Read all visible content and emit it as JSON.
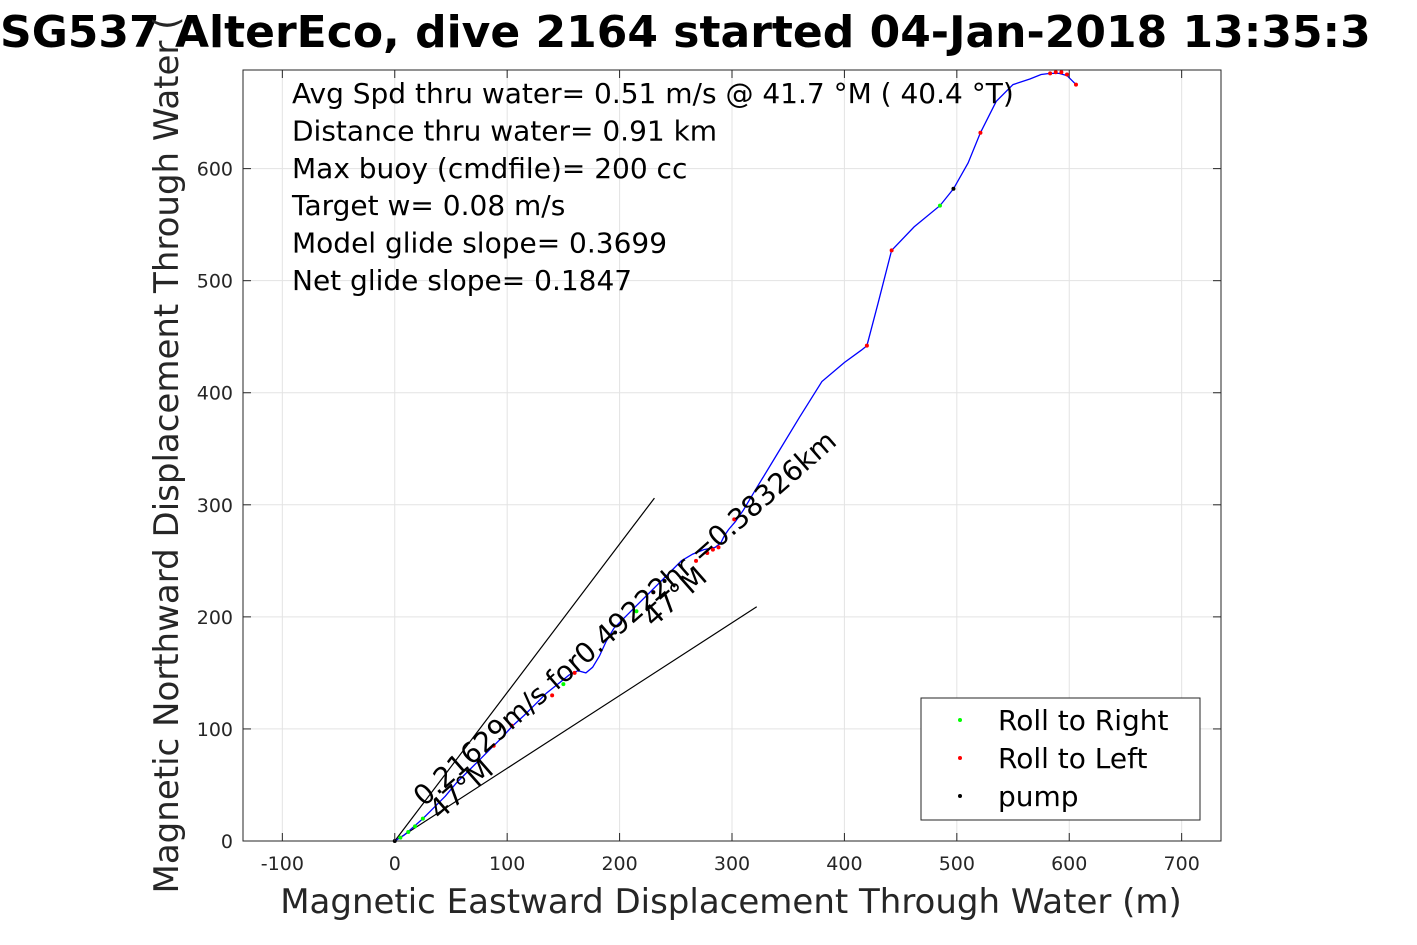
{
  "chart_data": {
    "type": "line",
    "title": "SG537 AlterEco, dive 2164 started 04-Jan-2018 13:35:3",
    "xlabel": "Magnetic Eastward Displacement Through Water (m)",
    "ylabel": "Magnetic Northward Displacement Through Water (",
    "xlim": [
      -135,
      735
    ],
    "ylim": [
      0,
      688
    ],
    "xticks": [
      -100,
      0,
      100,
      200,
      300,
      400,
      500,
      600,
      700
    ],
    "yticks": [
      0,
      100,
      200,
      300,
      400,
      500,
      600
    ],
    "xtick_labels": [
      "-100",
      "0",
      "100",
      "200",
      "300",
      "400",
      "500",
      "600",
      "700"
    ],
    "ytick_labels": [
      "0",
      "100",
      "200",
      "300",
      "400",
      "500",
      "600"
    ],
    "grid": true,
    "info_lines": [
      "Avg Spd thru water=  0.51 m/s @  41.7 °M ( 40.4 °T)",
      "Distance thru water=  0.91 km",
      "Max buoy (cmdfile)= 200 cc",
      "Target w= 0.08 m/s",
      "Model glide slope= 0.3699",
      "Net glide slope= 0.1847"
    ],
    "track": {
      "color": "#0000ff",
      "x": [
        0,
        8,
        16,
        25,
        35,
        45,
        55,
        65,
        75,
        85,
        95,
        105,
        115,
        125,
        135,
        145,
        155,
        163,
        170,
        176,
        182,
        188,
        195,
        205,
        215,
        225,
        235,
        245,
        255,
        265,
        275,
        285,
        290,
        293,
        297,
        303,
        310,
        320,
        340,
        360,
        380,
        400,
        415,
        420,
        430,
        442,
        462,
        485,
        497,
        510,
        521,
        535,
        550,
        565,
        575,
        583,
        591,
        598,
        606
      ],
      "y": [
        0,
        5,
        12,
        20,
        30,
        40,
        52,
        62,
        72,
        82,
        92,
        103,
        112,
        122,
        132,
        140,
        148,
        152,
        150,
        155,
        165,
        178,
        190,
        200,
        210,
        220,
        230,
        240,
        250,
        256,
        260,
        262,
        266,
        272,
        278,
        285,
        295,
        312,
        345,
        378,
        410,
        427,
        438,
        442,
        480,
        527,
        548,
        567,
        582,
        605,
        632,
        660,
        675,
        680,
        684,
        685,
        685,
        683,
        675
      ]
    },
    "series": [
      {
        "name": "Roll to Right",
        "color": "#00ff00",
        "x": [
          5,
          12,
          18,
          25,
          215,
          485,
          150
        ],
        "y": [
          3,
          8,
          13,
          20,
          205,
          567,
          140
        ]
      },
      {
        "name": "Roll to Left",
        "color": "#ff0000",
        "x": [
          88,
          104,
          140,
          160,
          230,
          268,
          278,
          283,
          288,
          302,
          420,
          442,
          521,
          583,
          588,
          593,
          598,
          606
        ],
        "y": [
          85,
          103,
          130,
          150,
          222,
          250,
          257,
          260,
          262,
          287,
          442,
          527,
          632,
          685,
          686,
          686,
          684,
          675
        ],
        "extra_color": "#ff00ff"
      },
      {
        "name": "pump",
        "color": "#000000",
        "x": [
          0,
          196,
          230,
          240,
          497
        ],
        "y": [
          0,
          186,
          222,
          232,
          582
        ]
      }
    ],
    "reference_lines": [
      {
        "x": [
          0,
          231
        ],
        "y": [
          0,
          306
        ]
      },
      {
        "x": [
          0,
          322
        ],
        "y": [
          0,
          209
        ]
      }
    ],
    "annotations": [
      {
        "text": "0.21629m/s for0.49222hr =0.38326km",
        "x": 26,
        "y": 30,
        "angle_deg": -41.3
      },
      {
        "text": "47°M",
        "x": 40,
        "y": 18,
        "angle_deg": -41.3
      },
      {
        "text": "47°M",
        "x": 230,
        "y": 190,
        "angle_deg": -41.3
      }
    ],
    "legend": {
      "location": "bottom-right",
      "entries": [
        "Roll to Right",
        "Roll to Left",
        "pump"
      ]
    }
  }
}
